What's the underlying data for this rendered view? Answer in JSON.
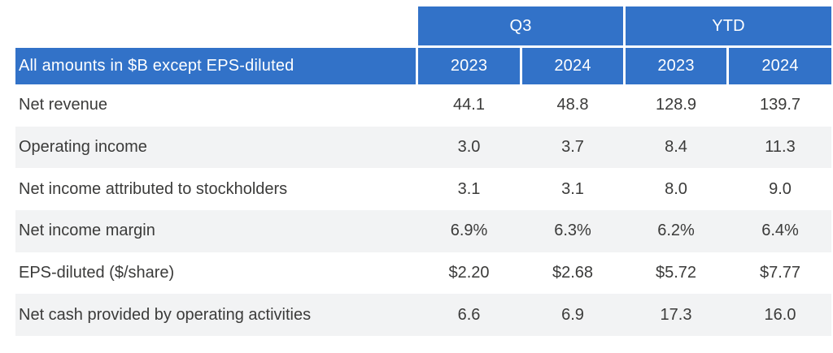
{
  "chart_data": {
    "type": "table",
    "note_header": "All amounts in $B except EPS-diluted",
    "groups": [
      {
        "label": "Q3"
      },
      {
        "label": "YTD"
      }
    ],
    "year_headers": [
      "2023",
      "2024",
      "2023",
      "2024"
    ],
    "columns": [
      "Q3 2023",
      "Q3 2024",
      "YTD 2023",
      "YTD 2024"
    ],
    "rows": [
      {
        "label": "Net revenue",
        "values": [
          "44.1",
          "48.8",
          "128.9",
          "139.7"
        ]
      },
      {
        "label": "Operating income",
        "values": [
          "3.0",
          "3.7",
          "8.4",
          "11.3"
        ]
      },
      {
        "label": "Net income attributed to stockholders",
        "values": [
          "3.1",
          "3.1",
          "8.0",
          "9.0"
        ]
      },
      {
        "label": "Net income margin",
        "values": [
          "6.9%",
          "6.3%",
          "6.2%",
          "6.4%"
        ]
      },
      {
        "label": "EPS-diluted ($/share)",
        "values": [
          "$2.20",
          "$2.68",
          "$5.72",
          "$7.77"
        ]
      },
      {
        "label": "Net cash provided by operating activities",
        "values": [
          "6.6",
          "6.9",
          "17.3",
          "16.0"
        ]
      }
    ],
    "colors": {
      "header_blue": "#3272c8",
      "alt_row_gray": "#f2f3f4",
      "text_dark": "#3b3b3a",
      "header_text": "#ffffff"
    },
    "layout": {
      "legend": "none",
      "grid": "row-stripes"
    }
  }
}
